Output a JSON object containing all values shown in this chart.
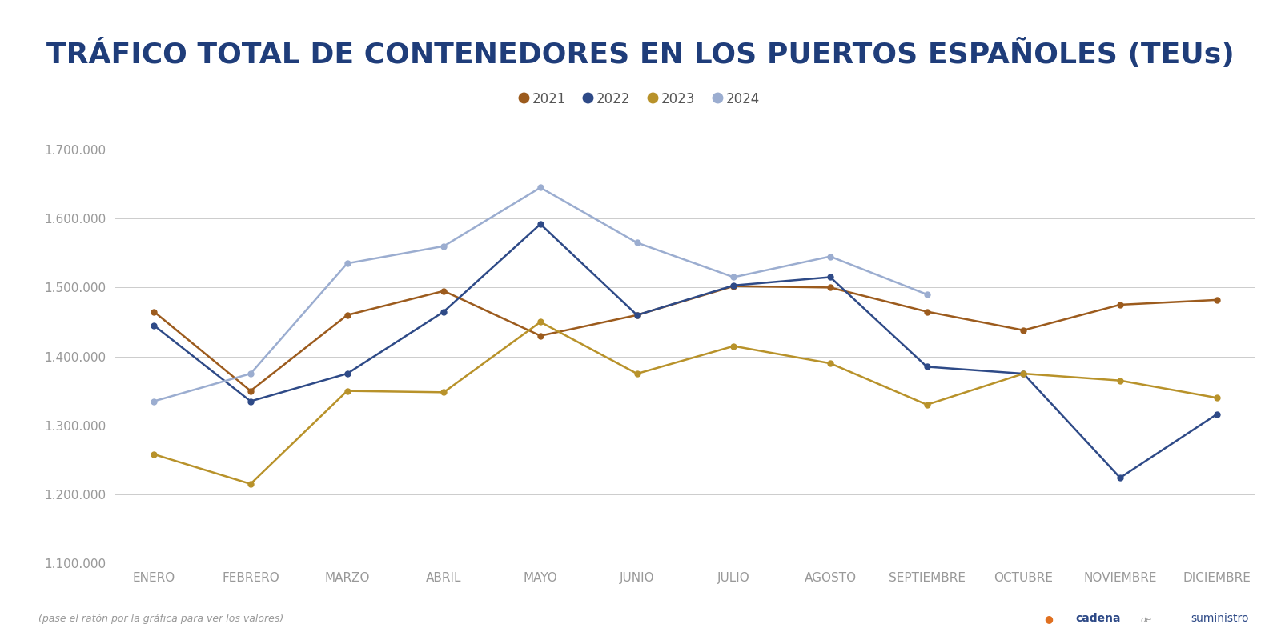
{
  "title": "TRÁFICO TOTAL DE CONTENEDORES EN LOS PUERTOS ESPAÑOLES (TEUs)",
  "months": [
    "ENERO",
    "FEBRERO",
    "MARZO",
    "ABRIL",
    "MAYO",
    "JUNIO",
    "JULIO",
    "AGOSTO",
    "SEPTIEMBRE",
    "OCTUBRE",
    "NOVIEMBRE",
    "DICIEMBRE"
  ],
  "series": {
    "2021": [
      1465000,
      1350000,
      1460000,
      1495000,
      1430000,
      1460000,
      1502000,
      1500000,
      1465000,
      1438000,
      1475000,
      1482000
    ],
    "2022": [
      1445000,
      1335000,
      1375000,
      1465000,
      1592000,
      1460000,
      1503000,
      1515000,
      1385000,
      1375000,
      1224000,
      1316000
    ],
    "2023": [
      1258000,
      1215000,
      1350000,
      1348000,
      1450000,
      1375000,
      1415000,
      1390000,
      1330000,
      1375000,
      1365000,
      1340000
    ],
    "2024": [
      1335000,
      1375000,
      1535000,
      1560000,
      1645000,
      1565000,
      1515000,
      1545000,
      1490000,
      null,
      null,
      null
    ]
  },
  "colors": {
    "2021": "#9C5B1D",
    "2022": "#2E4A87",
    "2023": "#B8922A",
    "2024": "#9BADD0"
  },
  "year_order": [
    "2021",
    "2022",
    "2023",
    "2024"
  ],
  "ylim": [
    1100000,
    1750000
  ],
  "yticks": [
    1100000,
    1200000,
    1300000,
    1400000,
    1500000,
    1600000,
    1700000
  ],
  "background_color": "#FFFFFF",
  "grid_color": "#CCCCCC",
  "title_color": "#1F3D7A",
  "axis_label_color": "#999999",
  "footer_left": "(pase el ratón por la gráfica para ver los valores)",
  "footer_right_cadena": "cadena",
  "footer_right_de": "de",
  "footer_right_suministro": "suministro",
  "marker_size": 5,
  "linewidth": 1.8,
  "title_fontsize": 26,
  "legend_fontsize": 12,
  "tick_fontsize": 11
}
